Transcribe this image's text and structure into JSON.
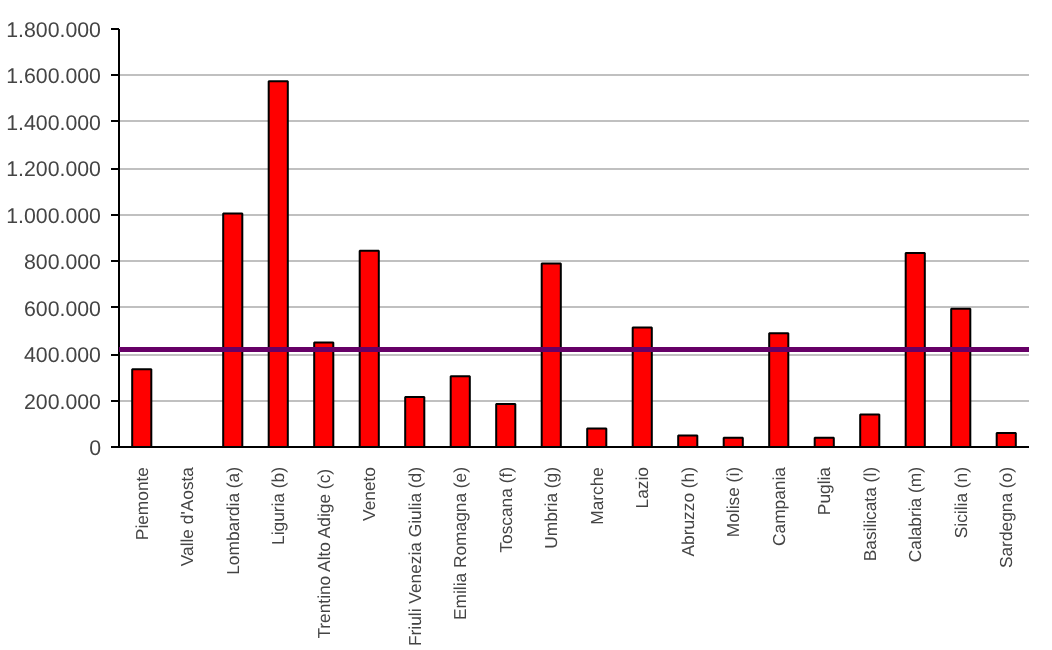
{
  "chart_data": {
    "type": "bar",
    "categories": [
      "Piemonte",
      "Valle d'Aosta",
      "Lombardia (a)",
      "Liguria (b)",
      "Trentino Alto Adige (c)",
      "Veneto",
      "Friuli Venezia Giulia (d)",
      "Emilia Romagna (e)",
      "Toscana (f)",
      "Umbria (g)",
      "Marche",
      "Lazio",
      "Abruzzo (h)",
      "Molise (i)",
      "Campania",
      "Puglia",
      "Basilicata (l)",
      "Calabria (m)",
      "Sicilia (n)",
      "Sardegna (o)"
    ],
    "values": [
      335000,
      0,
      1005000,
      1575000,
      450000,
      845000,
      215000,
      305000,
      185000,
      790000,
      80000,
      515000,
      50000,
      40000,
      490000,
      40000,
      140000,
      835000,
      595000,
      60000
    ],
    "color": "#ff0000",
    "ylim": [
      0,
      1800000
    ],
    "yticks": [
      {
        "value": 0,
        "label": "0"
      },
      {
        "value": 200000,
        "label": "200.000"
      },
      {
        "value": 400000,
        "label": "400.000"
      },
      {
        "value": 600000,
        "label": "600.000"
      },
      {
        "value": 800000,
        "label": "800.000"
      },
      {
        "value": 1000000,
        "label": "1.000.000"
      },
      {
        "value": 1200000,
        "label": "1.200.000"
      },
      {
        "value": 1400000,
        "label": "1.400.000"
      },
      {
        "value": 1600000,
        "label": "1.600.000"
      },
      {
        "value": 1800000,
        "label": "1.800.000"
      }
    ],
    "grid": "y",
    "ref_lines": [
      {
        "axis": "y",
        "value": 420000,
        "color": "#660066"
      }
    ]
  }
}
